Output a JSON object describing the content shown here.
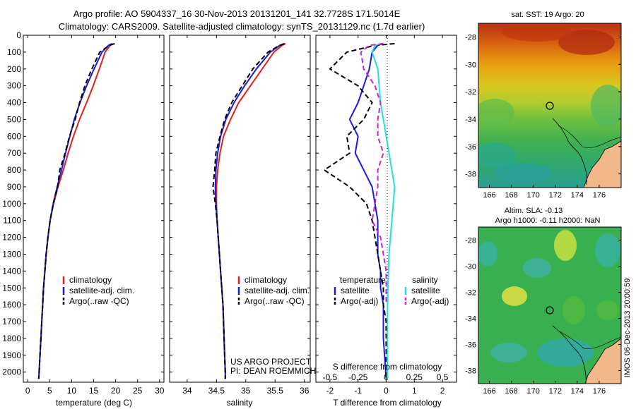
{
  "header": {
    "line1": "Argo profile: AO 5904337_16 30-Nov-2013 20131201_141 32.7728S 171.5014E",
    "line2": "Climatology: CARS2009. Satellite-adjusted climatology: synTS_20131129.nc (1.7d earlier)"
  },
  "side_text": "IMOS 06-Dec-2013 20:00:59",
  "colors": {
    "climatology": "#e0201a",
    "satellite": "#1a1ae6",
    "argo": "#000000",
    "satellite_s": "#22e0e0",
    "argo_s": "#d020d0",
    "land": "#f2b88a"
  },
  "chart_data": [
    {
      "type": "line",
      "name": "temperature-panel",
      "xlabel": "temperature (deg C)",
      "xlim": [
        -1,
        31
      ],
      "ylim": [
        0,
        2060
      ],
      "xticks": [
        0,
        5,
        10,
        15,
        20,
        25,
        30
      ],
      "yticks": [
        0,
        100,
        200,
        300,
        400,
        500,
        600,
        700,
        800,
        900,
        1000,
        1100,
        1200,
        1300,
        1400,
        1500,
        1600,
        1700,
        1800,
        1900,
        2000
      ],
      "legend": {
        "entries": [
          "climatology",
          "satellite-adj. clim.",
          "Argo(..raw -QC)"
        ],
        "placement": "lower-middle"
      },
      "series": [
        {
          "name": "climatology",
          "color": "#e0201a",
          "style": "solid",
          "x": [
            19.5,
            18.8,
            17.6,
            16.3,
            14.9,
            13.4,
            11.8,
            10.4,
            9.2,
            8.1,
            6.9,
            5.9,
            5.1,
            4.6,
            4.2,
            3.9,
            3.6,
            3.4,
            3.2,
            3.0,
            2.8,
            2.7,
            2.6,
            2.5
          ],
          "y": [
            50,
            60,
            100,
            200,
            300,
            400,
            500,
            600,
            700,
            800,
            900,
            1000,
            1100,
            1200,
            1300,
            1400,
            1500,
            1600,
            1700,
            1800,
            1900,
            1950,
            2000,
            2040
          ]
        },
        {
          "name": "satellite-adj. clim.",
          "color": "#1a1ae6",
          "style": "solid",
          "x": [
            19.2,
            18.4,
            16.9,
            15.1,
            13.4,
            11.9,
            10.6,
            9.6,
            8.6,
            7.7,
            6.7,
            5.8,
            5.1,
            4.6,
            4.2,
            3.9,
            3.6,
            3.4,
            3.2,
            3.0,
            2.8,
            2.7,
            2.6,
            2.5
          ],
          "y": [
            50,
            60,
            100,
            200,
            300,
            400,
            500,
            600,
            700,
            800,
            900,
            1000,
            1100,
            1200,
            1300,
            1400,
            1500,
            1600,
            1700,
            1800,
            1900,
            1950,
            2000,
            2040
          ]
        },
        {
          "name": "Argo(..raw -QC)",
          "color": "#000000",
          "style": "dashed",
          "x": [
            19.8,
            18.6,
            16.4,
            14.6,
            13.0,
            11.8,
            10.8,
            9.5,
            8.5,
            7.3,
            6.8,
            5.8,
            5.1,
            4.6,
            4.2,
            3.9,
            3.6,
            3.4,
            3.2,
            3.0,
            2.8,
            2.7,
            2.6,
            2.5
          ],
          "y": [
            50,
            60,
            100,
            200,
            300,
            400,
            500,
            600,
            700,
            800,
            900,
            1000,
            1100,
            1200,
            1300,
            1400,
            1500,
            1600,
            1700,
            1800,
            1900,
            1950,
            2000,
            2040
          ]
        }
      ]
    },
    {
      "type": "line",
      "name": "salinity-panel",
      "xlabel": "salinity",
      "xlim": [
        33.7,
        36.1
      ],
      "ylim": [
        0,
        2060
      ],
      "xticks": [
        34,
        34.5,
        35,
        35.5,
        36
      ],
      "legend": {
        "entries": [
          "climatology",
          "satellite-adj. clim.",
          "Argo(..raw -QC)"
        ],
        "placement": "lower-middle"
      },
      "annotation": [
        "US ARGO PROJECT",
        "PI: DEAN ROEMMICH"
      ],
      "series": [
        {
          "name": "climatology",
          "color": "#e0201a",
          "style": "solid",
          "x": [
            35.68,
            35.62,
            35.48,
            35.28,
            35.08,
            34.88,
            34.74,
            34.62,
            34.56,
            34.52,
            34.5,
            34.5,
            34.51,
            34.53,
            34.55,
            34.57,
            34.59,
            34.61,
            34.62,
            34.63,
            34.64,
            34.65,
            34.65
          ],
          "y": [
            50,
            60,
            100,
            200,
            300,
            400,
            500,
            600,
            700,
            800,
            900,
            1000,
            1100,
            1200,
            1300,
            1400,
            1500,
            1600,
            1700,
            1800,
            1900,
            2000,
            2040
          ]
        },
        {
          "name": "satellite-adj. clim.",
          "color": "#1a1ae6",
          "style": "solid",
          "x": [
            35.65,
            35.58,
            35.42,
            35.18,
            34.98,
            34.8,
            34.66,
            34.57,
            34.52,
            34.49,
            34.48,
            34.49,
            34.51,
            34.53,
            34.55,
            34.57,
            34.59,
            34.61,
            34.62,
            34.63,
            34.64,
            34.65,
            34.65
          ],
          "y": [
            50,
            60,
            100,
            200,
            300,
            400,
            500,
            600,
            700,
            800,
            900,
            1000,
            1100,
            1200,
            1300,
            1400,
            1500,
            1600,
            1700,
            1800,
            1900,
            2000,
            2040
          ]
        },
        {
          "name": "Argo(..raw -QC)",
          "color": "#000000",
          "style": "dashed",
          "x": [
            35.66,
            35.58,
            35.38,
            35.12,
            34.94,
            34.76,
            34.64,
            34.56,
            34.49,
            34.47,
            34.44,
            34.48,
            34.51,
            34.53,
            34.55,
            34.57,
            34.59,
            34.61,
            34.62,
            34.63,
            34.64,
            34.65,
            34.65
          ],
          "y": [
            50,
            60,
            100,
            200,
            300,
            400,
            500,
            600,
            700,
            800,
            900,
            1000,
            1100,
            1200,
            1300,
            1400,
            1500,
            1600,
            1700,
            1800,
            1900,
            2000,
            2040
          ]
        }
      ]
    },
    {
      "type": "line",
      "name": "difference-panel",
      "xlabel": "T difference from climatology",
      "xlabel2": "S difference from climatology",
      "xlim": [
        -2.5,
        2.5
      ],
      "xticks": [
        -2,
        -1,
        0,
        1,
        2
      ],
      "xticks2": {
        "positions": [
          -2,
          -1,
          0,
          1,
          2
        ],
        "labels": [
          "-0.5",
          "-0.25",
          "0",
          "0.25",
          "0.5"
        ]
      },
      "ylim": [
        0,
        2060
      ],
      "legend_left": {
        "title": "temperature",
        "entries": [
          "satellite",
          "Argo(-adj)"
        ]
      },
      "legend_right": {
        "title": "salinity",
        "entries": [
          "satellite",
          "Argo(-adj)"
        ]
      },
      "series": [
        {
          "name": "satellite",
          "group": "temperature",
          "color": "#1a1ae6",
          "style": "solid",
          "x": [
            -0.1,
            -0.3,
            -0.5,
            -0.6,
            -0.8,
            -1.0,
            -1.3,
            -1.0,
            -1.1,
            -0.8,
            -0.5,
            -0.4,
            -0.3,
            -0.3,
            -0.3,
            -0.2,
            -0.2,
            -0.1,
            -0.1,
            -0.1,
            0
          ],
          "y": [
            50,
            60,
            100,
            200,
            300,
            400,
            500,
            600,
            700,
            800,
            900,
            1000,
            1100,
            1200,
            1300,
            1400,
            1500,
            1600,
            1700,
            1800,
            2040
          ]
        },
        {
          "name": "Argo(-adj)",
          "group": "temperature",
          "color": "#000000",
          "style": "dashed",
          "x": [
            0.3,
            -0.4,
            -1.4,
            -2.0,
            -1.0,
            -0.5,
            -0.8,
            -1.4,
            -1.3,
            -2.2,
            -1.3,
            -0.7,
            -0.5,
            -0.4,
            -0.3,
            -0.2,
            -0.1,
            -0.1,
            0,
            0,
            0
          ],
          "y": [
            50,
            60,
            100,
            200,
            300,
            400,
            500,
            600,
            700,
            800,
            900,
            1000,
            1100,
            1200,
            1300,
            1400,
            1500,
            1600,
            1700,
            1800,
            2040
          ]
        },
        {
          "name": "satellite",
          "group": "salinity",
          "color": "#22e0e0",
          "style": "solid",
          "x": [
            -0.15,
            -0.4,
            -0.5,
            -0.3,
            -0.25,
            -0.2,
            -0.1,
            0.0,
            0.1,
            0.2,
            0.3,
            0.25,
            0.2,
            0.15,
            0.1,
            0.08,
            0.06,
            0.05,
            0.04,
            0.04
          ],
          "y": [
            50,
            60,
            100,
            200,
            300,
            400,
            500,
            600,
            700,
            800,
            900,
            1000,
            1100,
            1200,
            1300,
            1400,
            1500,
            1600,
            1700,
            2040
          ]
        },
        {
          "name": "Argo(-adj)",
          "group": "salinity",
          "color": "#d020d0",
          "style": "dashed",
          "x": [
            -0.1,
            -0.6,
            -0.9,
            -0.8,
            -0.4,
            -0.2,
            -0.3,
            -0.3,
            -0.1,
            -0.3,
            -0.3,
            -0.4,
            -0.5,
            -0.2,
            -0.1,
            0,
            0,
            0
          ],
          "y": [
            50,
            60,
            100,
            200,
            300,
            400,
            500,
            600,
            700,
            800,
            900,
            1000,
            1100,
            1200,
            1300,
            1400,
            1500,
            1600
          ]
        }
      ]
    },
    {
      "type": "heatmap",
      "name": "sst-map",
      "title": "sat. SST: 19 Argo: 20",
      "xticks": [
        166,
        168,
        170,
        172,
        174,
        176
      ],
      "yticks": [
        -28,
        -30,
        -32,
        -34,
        -36,
        -38
      ],
      "xlim": [
        165,
        178
      ],
      "ylim": [
        -39,
        -27
      ],
      "marker": {
        "lon": 171.5,
        "lat": -32.77
      }
    },
    {
      "type": "heatmap",
      "name": "sla-map",
      "title": "Altim. SLA: -0.13",
      "subtitle": "Argo h1000: -0.11 h2000: NaN",
      "xticks": [
        166,
        168,
        170,
        172,
        174,
        176
      ],
      "yticks": [
        -28,
        -30,
        -32,
        -34,
        -36,
        -38
      ],
      "xlim": [
        165,
        178
      ],
      "ylim": [
        -39,
        -27
      ],
      "marker": {
        "lon": 171.5,
        "lat": -32.77
      }
    }
  ]
}
